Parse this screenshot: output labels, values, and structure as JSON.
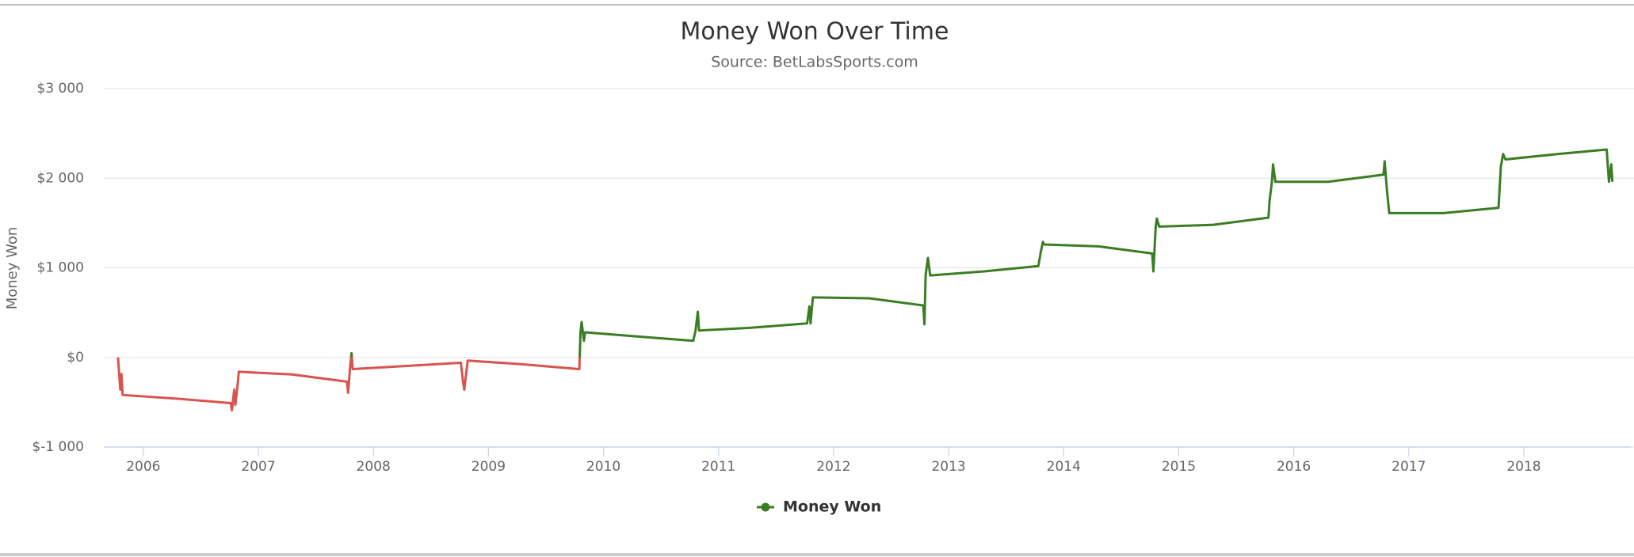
{
  "chart_data": {
    "type": "line",
    "title": "Money Won Over Time",
    "subtitle": "Source: BetLabsSports.com",
    "y_label": "Money Won",
    "x": [
      2005.78,
      2005.8,
      2005.81,
      2005.82,
      2005.83,
      2006.29,
      2006.76,
      2006.77,
      2006.79,
      2006.8,
      2006.82,
      2006.83,
      2007.29,
      2007.77,
      2007.78,
      2007.8,
      2007.81,
      2007.82,
      2008.29,
      2008.76,
      2008.78,
      2008.79,
      2008.8,
      2008.82,
      2009.28,
      2009.79,
      2009.8,
      2009.81,
      2009.83,
      2009.84,
      2010.28,
      2010.78,
      2010.8,
      2010.82,
      2010.83,
      2011.27,
      2011.77,
      2011.79,
      2011.8,
      2011.82,
      2012.31,
      2012.78,
      2012.79,
      2012.8,
      2012.82,
      2012.84,
      2013.31,
      2013.78,
      2013.8,
      2013.82,
      2013.83,
      2014.3,
      2014.77,
      2014.78,
      2014.8,
      2014.81,
      2014.83,
      2015.3,
      2015.78,
      2015.79,
      2015.81,
      2015.82,
      2015.84,
      2016.3,
      2016.78,
      2016.79,
      2016.81,
      2016.83,
      2017.3,
      2017.78,
      2017.8,
      2017.82,
      2017.84,
      2018.3,
      2018.72,
      2018.74,
      2018.76,
      2018.77
    ],
    "series": [
      {
        "name": "Money Won",
        "color": "#3a7d24",
        "negative_color": "#d9534f",
        "values": [
          0,
          -360,
          -185,
          -417,
          -420,
          -460,
          -510,
          -590,
          -360,
          -530,
          -300,
          -160,
          -190,
          -270,
          -395,
          -70,
          46,
          -130,
          -95,
          -60,
          -280,
          -360,
          -245,
          -35,
          -75,
          -130,
          280,
          395,
          185,
          280,
          235,
          185,
          300,
          510,
          300,
          330,
          380,
          570,
          380,
          670,
          660,
          580,
          370,
          915,
          1110,
          915,
          960,
          1020,
          1170,
          1290,
          1260,
          1240,
          1160,
          960,
          1460,
          1550,
          1460,
          1480,
          1560,
          1750,
          1960,
          2155,
          1960,
          1960,
          2040,
          2190,
          1870,
          1610,
          1610,
          1670,
          2130,
          2270,
          2210,
          2270,
          2320,
          1960,
          2155,
          1960
        ]
      }
    ],
    "xlim": [
      2005.66,
      2018.93
    ],
    "xticks": [
      2006,
      2007,
      2008,
      2009,
      2010,
      2011,
      2012,
      2013,
      2014,
      2015,
      2016,
      2017,
      2018
    ],
    "ylim": [
      -1000,
      3000
    ],
    "yticks": [
      {
        "value": -1000,
        "label": "$-1 000"
      },
      {
        "value": 0,
        "label": "$0"
      },
      {
        "value": 1000,
        "label": "$1 000"
      },
      {
        "value": 2000,
        "label": "$2 000"
      },
      {
        "value": 3000,
        "label": "$3 000"
      }
    ],
    "grid": true
  }
}
